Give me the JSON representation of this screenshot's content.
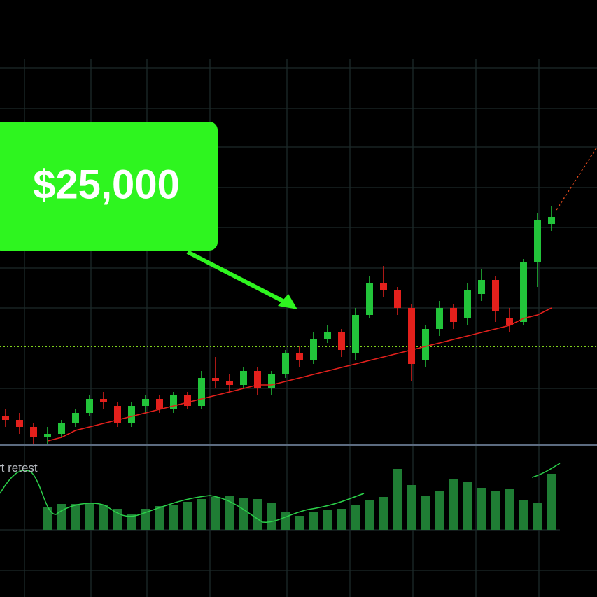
{
  "chart_data": {
    "type": "candlestick",
    "callout": "$25,000",
    "annotation": "rt retest",
    "ylim": [
      0,
      100
    ],
    "open": [
      9,
      8,
      6,
      3,
      4,
      7,
      10,
      14,
      12,
      7,
      12,
      14,
      11,
      15,
      12,
      20,
      19,
      18,
      22,
      17,
      21,
      27,
      25,
      31,
      33,
      27,
      38,
      47,
      45,
      40,
      25,
      34,
      40,
      37,
      44,
      48,
      37,
      36,
      53,
      64
    ],
    "high": [
      11,
      10,
      7,
      6,
      8,
      11,
      15,
      16,
      13,
      13,
      15,
      15,
      16,
      16,
      22,
      26,
      21,
      23,
      23,
      22,
      28,
      29,
      33,
      35,
      34,
      40,
      49,
      52,
      46,
      41,
      35,
      42,
      41,
      47,
      51,
      49,
      40,
      54,
      67,
      69
    ],
    "low": [
      6,
      4,
      1,
      1,
      3,
      6,
      9,
      11,
      6,
      6,
      10,
      10,
      10,
      11,
      11,
      17,
      16,
      17,
      15,
      15,
      20,
      23,
      24,
      30,
      26,
      25,
      37,
      43,
      38,
      19,
      23,
      32,
      34,
      35,
      42,
      36,
      33,
      35,
      46,
      62
    ],
    "close": [
      8,
      6,
      3,
      4,
      7,
      10,
      14,
      13,
      7,
      12,
      14,
      11,
      15,
      12,
      20,
      19,
      18,
      22,
      17,
      21,
      27,
      25,
      31,
      33,
      28,
      38,
      47,
      45,
      40,
      24,
      34,
      40,
      36,
      45,
      48,
      39,
      35,
      53,
      65,
      66
    ],
    "up_color": "#22c43a",
    "down_color": "#e3201c",
    "moving_average": [
      null,
      null,
      null,
      2,
      3,
      5,
      6,
      7,
      8,
      9,
      10,
      11,
      12,
      13,
      14,
      15,
      16,
      17,
      18,
      18,
      19,
      20,
      21,
      22,
      23,
      24,
      25,
      26,
      27,
      28,
      29,
      30,
      31,
      32,
      33,
      34,
      35,
      37,
      38,
      40
    ],
    "ma_color": "#e3201c",
    "level": 29,
    "level_color": "#7fd11b",
    "volume_ylim": [
      0,
      100
    ],
    "volume": [
      null,
      null,
      null,
      33,
      37,
      37,
      38,
      36,
      30,
      22,
      30,
      34,
      36,
      40,
      44,
      47,
      48,
      46,
      44,
      38,
      25,
      20,
      26,
      28,
      30,
      35,
      42,
      47,
      87,
      64,
      48,
      55,
      72,
      68,
      60,
      55,
      58,
      42,
      38,
      80
    ],
    "volume_color": "#1f7d34"
  }
}
